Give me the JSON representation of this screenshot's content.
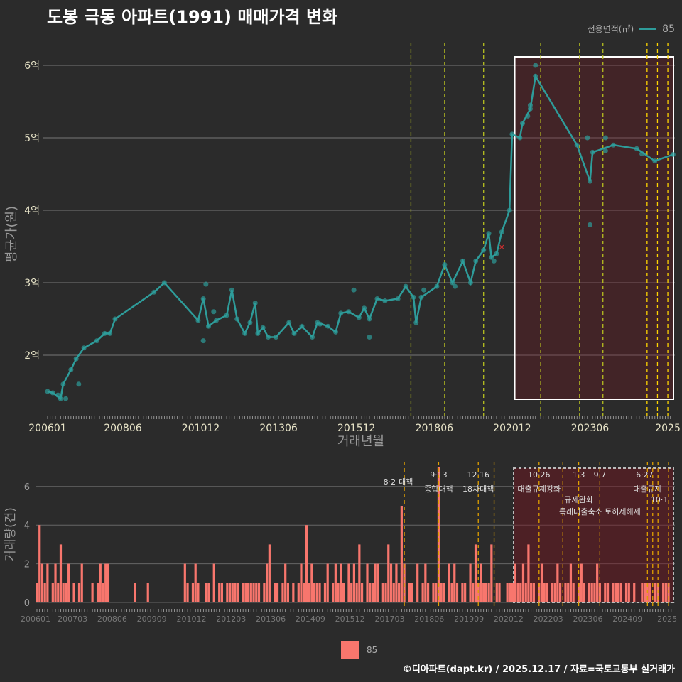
{
  "title": "도봉 극동 아파트(1991) 매매가격 변화",
  "legend": {
    "title": "전용면적(㎡)",
    "series": "85"
  },
  "footer": "©디아파트(dapt.kr) / 2025.12.17 / 자료=국토교통부 실거래가",
  "chart_data": [
    {
      "type": "line",
      "title": "도봉 극동 아파트(1991) 매매가격 변화",
      "xlabel": "거래년월",
      "ylabel": "평균가(원)",
      "x_unit": "months since 200601",
      "xticks": [
        {
          "m": 0,
          "label": "200601"
        },
        {
          "m": 29,
          "label": "200806"
        },
        {
          "m": 59,
          "label": "201012"
        },
        {
          "m": 89,
          "label": "201306"
        },
        {
          "m": 119,
          "label": "201512"
        },
        {
          "m": 149,
          "label": "201806"
        },
        {
          "m": 179,
          "label": "202012"
        },
        {
          "m": 209,
          "label": "202306"
        },
        {
          "m": 239,
          "label": "2025"
        }
      ],
      "yticks": [
        {
          "v": 2,
          "label": "2억"
        },
        {
          "v": 3,
          "label": "3억"
        },
        {
          "v": 4,
          "label": "4억"
        },
        {
          "v": 5,
          "label": "5억"
        },
        {
          "v": 6,
          "label": "6억"
        }
      ],
      "series": [
        {
          "name": "85",
          "color": "#2e9c9a",
          "points": [
            [
              0,
              1.5
            ],
            [
              2,
              1.48
            ],
            [
              5,
              1.4
            ],
            [
              6,
              1.6
            ],
            [
              9,
              1.8
            ],
            [
              11,
              1.95
            ],
            [
              14,
              2.1
            ],
            [
              19,
              2.2
            ],
            [
              22,
              2.3
            ],
            [
              24,
              2.3
            ],
            [
              26,
              2.5
            ],
            [
              41,
              2.87
            ],
            [
              45,
              3.0
            ],
            [
              58,
              2.48
            ],
            [
              60,
              2.78
            ],
            [
              62,
              2.4
            ],
            [
              65,
              2.48
            ],
            [
              69,
              2.55
            ],
            [
              71,
              2.9
            ],
            [
              73,
              2.5
            ],
            [
              76,
              2.3
            ],
            [
              78,
              2.45
            ],
            [
              80,
              2.72
            ],
            [
              81,
              2.3
            ],
            [
              83,
              2.38
            ],
            [
              85,
              2.25
            ],
            [
              88,
              2.25
            ],
            [
              93,
              2.45
            ],
            [
              95,
              2.3
            ],
            [
              98,
              2.4
            ],
            [
              102,
              2.25
            ],
            [
              104,
              2.45
            ],
            [
              108,
              2.4
            ],
            [
              111,
              2.32
            ],
            [
              113,
              2.58
            ],
            [
              116,
              2.6
            ],
            [
              120,
              2.52
            ],
            [
              122,
              2.65
            ],
            [
              124,
              2.5
            ],
            [
              127,
              2.78
            ],
            [
              130,
              2.75
            ],
            [
              135,
              2.78
            ],
            [
              138,
              2.95
            ],
            [
              141,
              2.8
            ],
            [
              142,
              2.45
            ],
            [
              144,
              2.8
            ],
            [
              150,
              2.95
            ],
            [
              153,
              3.25
            ],
            [
              156,
              3.0
            ],
            [
              160,
              3.3
            ],
            [
              163,
              3.0
            ],
            [
              165,
              3.3
            ],
            [
              168,
              3.45
            ],
            [
              170,
              3.68
            ],
            [
              171,
              3.35
            ],
            [
              173,
              3.4
            ],
            [
              175,
              3.7
            ],
            [
              178,
              4.0
            ],
            [
              179,
              5.05
            ],
            [
              182,
              5.0
            ],
            [
              183,
              5.2
            ],
            [
              186,
              5.4
            ],
            [
              188,
              5.85
            ],
            [
              204,
              4.9
            ],
            [
              209,
              4.4
            ],
            [
              210,
              4.8
            ],
            [
              218,
              4.9
            ],
            [
              227,
              4.85
            ],
            [
              234,
              4.68
            ],
            [
              241,
              4.77
            ]
          ],
          "scatter": [
            [
              4,
              1.45
            ],
            [
              7,
              1.4
            ],
            [
              12,
              1.6
            ],
            [
              60,
              2.2
            ],
            [
              61,
              2.98
            ],
            [
              64,
              2.6
            ],
            [
              105,
              2.43
            ],
            [
              118,
              2.9
            ],
            [
              124,
              2.25
            ],
            [
              145,
              2.9
            ],
            [
              157,
              2.95
            ],
            [
              172,
              3.3
            ],
            [
              185,
              5.3
            ],
            [
              186,
              5.45
            ],
            [
              188,
              6.0
            ],
            [
              208,
              5.0
            ],
            [
              209,
              3.8
            ],
            [
              215,
              5.0
            ],
            [
              215,
              4.82
            ],
            [
              229,
              4.78
            ]
          ]
        }
      ],
      "cancelled": [
        [
          175,
          3.5
        ]
      ],
      "highlight_from": 180,
      "events": [
        140,
        153,
        168,
        190,
        205,
        214,
        231,
        235,
        239
      ]
    },
    {
      "type": "bar",
      "ylabel": "거래량(건)",
      "yticks": [
        0,
        2,
        4,
        6
      ],
      "color": "#f8766d",
      "xticks": [
        {
          "m": 0,
          "label": "200601"
        },
        {
          "m": 14,
          "label": "200703"
        },
        {
          "m": 29,
          "label": "200806"
        },
        {
          "m": 44,
          "label": "200909"
        },
        {
          "m": 59,
          "label": "201012"
        },
        {
          "m": 74,
          "label": "201203"
        },
        {
          "m": 89,
          "label": "201306"
        },
        {
          "m": 104,
          "label": "201409"
        },
        {
          "m": 119,
          "label": "201512"
        },
        {
          "m": 134,
          "label": "201703"
        },
        {
          "m": 149,
          "label": "201806"
        },
        {
          "m": 164,
          "label": "201909"
        },
        {
          "m": 179,
          "label": "202012"
        },
        {
          "m": 194,
          "label": "202203"
        },
        {
          "m": 209,
          "label": "202306"
        },
        {
          "m": 224,
          "label": "202409"
        },
        {
          "m": 239,
          "label": "2025"
        }
      ],
      "values": [
        1,
        4,
        2,
        1,
        2,
        0,
        1,
        2,
        1,
        3,
        1,
        1,
        2,
        0,
        1,
        0,
        1,
        2,
        0,
        0,
        0,
        1,
        0,
        1,
        2,
        1,
        2,
        2,
        0,
        0,
        0,
        0,
        0,
        0,
        0,
        0,
        0,
        1,
        0,
        0,
        0,
        0,
        1,
        0,
        0,
        0,
        0,
        0,
        0,
        0,
        0,
        0,
        0,
        0,
        0,
        0,
        2,
        1,
        0,
        1,
        2,
        1,
        0,
        0,
        1,
        1,
        0,
        2,
        0,
        1,
        1,
        0,
        1,
        1,
        1,
        1,
        1,
        0,
        1,
        1,
        1,
        1,
        1,
        1,
        1,
        0,
        1,
        2,
        3,
        0,
        1,
        1,
        0,
        1,
        2,
        1,
        0,
        1,
        0,
        1,
        2,
        1,
        4,
        1,
        2,
        1,
        1,
        1,
        0,
        1,
        2,
        0,
        1,
        2,
        1,
        2,
        1,
        0,
        2,
        1,
        2,
        1,
        3,
        1,
        0,
        2,
        1,
        1,
        2,
        2,
        0,
        1,
        1,
        3,
        2,
        1,
        2,
        1,
        5,
        2,
        0,
        1,
        1,
        0,
        2,
        0,
        1,
        2,
        1,
        0,
        1,
        1,
        7,
        1,
        1,
        0,
        2,
        1,
        2,
        1,
        0,
        1,
        1,
        0,
        2,
        1,
        3,
        1,
        2,
        1,
        1,
        1,
        3,
        0,
        1,
        1,
        0,
        0,
        1,
        1,
        1,
        2,
        1,
        1,
        2,
        1,
        3,
        1,
        1,
        0,
        1,
        2,
        1,
        1,
        0,
        1,
        1,
        2,
        1,
        0,
        1,
        1,
        2,
        1,
        0,
        1,
        2,
        1,
        0,
        1,
        1,
        1,
        2,
        1,
        0,
        1,
        1,
        0,
        1,
        1,
        1,
        1,
        0,
        1,
        1,
        0,
        1,
        0,
        0,
        1,
        1,
        1,
        1,
        0,
        1,
        1,
        0,
        1,
        1,
        1
      ],
      "events": [
        {
          "m": 139,
          "date": "8·2",
          "label": "대책"
        },
        {
          "m": 152,
          "date": "9·13",
          "label": "종합대책"
        },
        {
          "m": 167,
          "date": "12·16",
          "label": "18차대책"
        },
        {
          "m": 173,
          "date": "",
          "label": ""
        },
        {
          "m": 190,
          "date": "10·26",
          "label": "대출규제강화"
        },
        {
          "m": 199,
          "date": "",
          "label": ""
        },
        {
          "m": 205,
          "date": "1·3",
          "label": "규제완화"
        },
        {
          "m": 213,
          "date": "9·7",
          "label": "특례대출축소 토허제해제"
        },
        {
          "m": 231,
          "date": "6·27",
          "label": "대출규제"
        },
        {
          "m": 233,
          "date": "",
          "label": ""
        },
        {
          "m": 235,
          "date": "10·1",
          "label": ""
        },
        {
          "m": 239,
          "date": "",
          "label": ""
        }
      ]
    }
  ]
}
